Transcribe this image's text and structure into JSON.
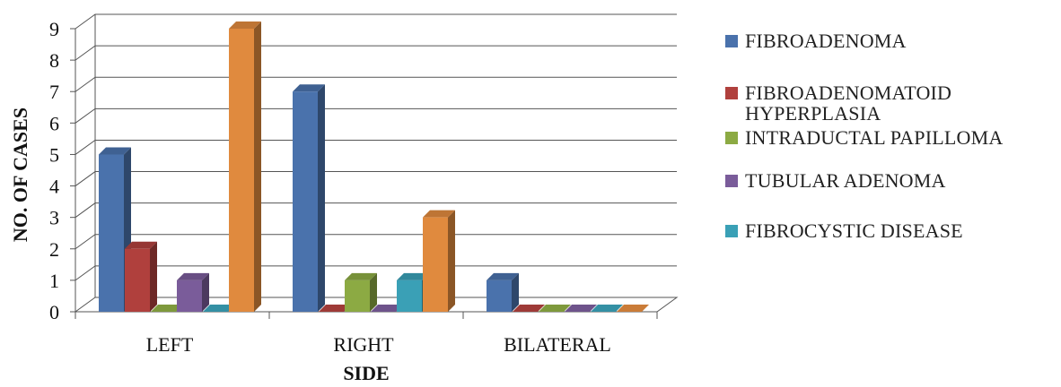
{
  "chart_data": {
    "type": "bar",
    "title": "",
    "xlabel": "SIDE",
    "ylabel": "NO. OF CASES",
    "ylim": [
      0,
      9
    ],
    "yticks": [
      "0",
      "1",
      "2",
      "3",
      "4",
      "5",
      "6",
      "7",
      "8",
      "9"
    ],
    "categories": [
      "LEFT",
      "RIGHT",
      "BILATERAL"
    ],
    "grid": true,
    "legend_position": "right",
    "series": [
      {
        "name": "FIBROADENOMA",
        "values": [
          5,
          7,
          1
        ],
        "color": "#4a72ac"
      },
      {
        "name": "FIBROADENOMATOID HYPERPLASIA",
        "values": [
          2,
          0,
          0
        ],
        "color": "#b0403d"
      },
      {
        "name": "INTRADUCTAL PAPILLOMA",
        "values": [
          0,
          1,
          0
        ],
        "color": "#8caa43"
      },
      {
        "name": "TUBULAR ADENOMA",
        "values": [
          1,
          0,
          0
        ],
        "color": "#7a5c9a"
      },
      {
        "name": "FIBROCYSTIC DISEASE",
        "values": [
          0,
          1,
          0
        ],
        "color": "#3aa0b6"
      },
      {
        "name": "",
        "values": [
          9,
          3,
          0
        ],
        "color": "#e08a3e"
      }
    ]
  }
}
